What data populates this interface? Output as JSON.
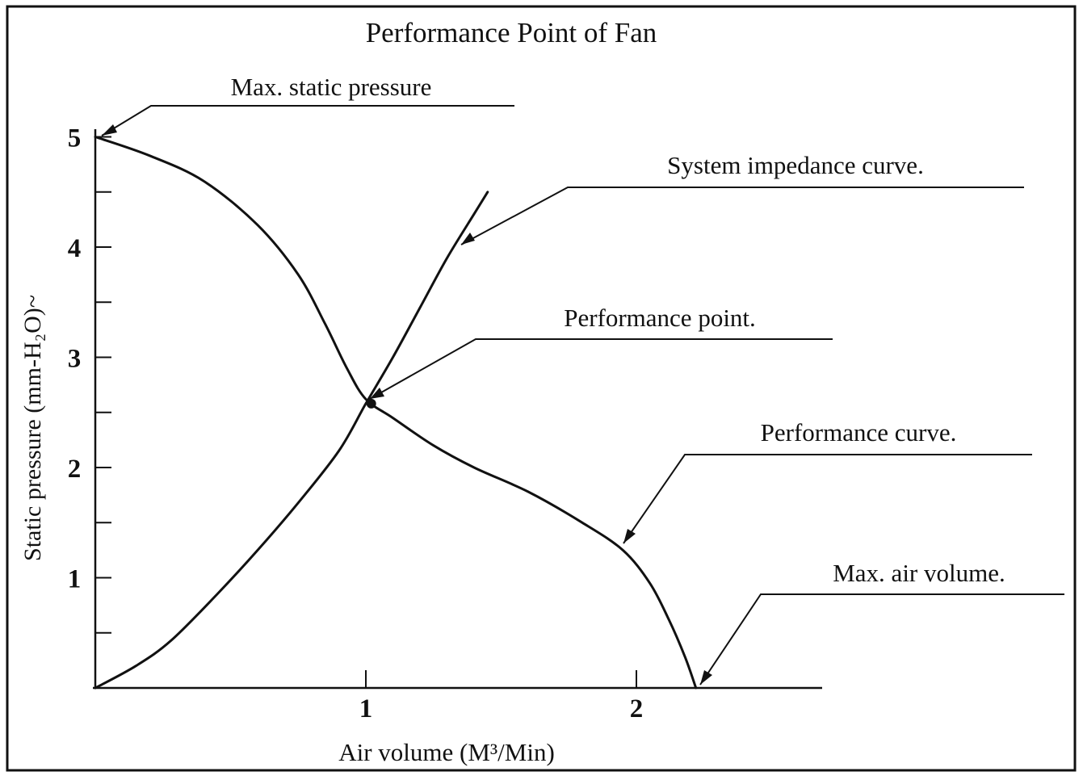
{
  "chart_data": {
    "type": "line",
    "title": "Performance Point of Fan",
    "xlabel": "Air volume (M³/Min)",
    "ylabel": "Static pressure (mm-H₂O)~",
    "xlim": [
      0,
      2.7
    ],
    "ylim": [
      0,
      5
    ],
    "x_ticks": [
      1,
      2
    ],
    "y_ticks": [
      1,
      2,
      3,
      4,
      5
    ],
    "y_minor_step": 0.5,
    "grid": false,
    "legend": "none",
    "series": [
      {
        "role": "performance",
        "color": "#111111",
        "x": [
          0,
          0.2,
          0.4,
          0.6,
          0.75,
          0.85,
          0.93,
          1.0,
          1.1,
          1.25,
          1.4,
          1.6,
          1.8,
          1.95,
          2.05,
          2.12,
          2.18,
          2.22
        ],
        "y": [
          5.0,
          4.83,
          4.6,
          4.2,
          3.75,
          3.3,
          2.9,
          2.62,
          2.45,
          2.2,
          2.0,
          1.78,
          1.5,
          1.25,
          0.95,
          0.62,
          0.28,
          0.0
        ]
      },
      {
        "role": "impedance",
        "color": "#111111",
        "x": [
          0,
          0.15,
          0.28,
          0.45,
          0.6,
          0.75,
          0.9,
          1.0,
          1.1,
          1.2,
          1.3,
          1.4,
          1.45
        ],
        "y": [
          0,
          0.2,
          0.43,
          0.85,
          1.25,
          1.68,
          2.15,
          2.58,
          3.0,
          3.45,
          3.9,
          4.3,
          4.5
        ]
      }
    ],
    "performance_point": {
      "x": 1.02,
      "y": 2.58
    },
    "annotations": [
      {
        "text": "Max. static pressure",
        "target": [
          0.0,
          5.0
        ]
      },
      {
        "text": "System impedance curve.",
        "target": [
          1.33,
          4.05
        ]
      },
      {
        "text": "Performance point.",
        "target": [
          1.02,
          2.58
        ]
      },
      {
        "text": "Performance curve.",
        "target": [
          1.93,
          1.28
        ]
      },
      {
        "text": "Max. air volume.",
        "target": [
          2.22,
          0.0
        ]
      }
    ]
  }
}
